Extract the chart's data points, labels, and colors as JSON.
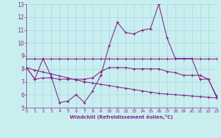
{
  "xlabel": "Windchill (Refroidissement éolien,°C)",
  "background_color": "#c8eef0",
  "grid_color": "#a8d8dc",
  "line_color": "#882288",
  "xmin": 0,
  "xmax": 23,
  "ymin": 5,
  "ymax": 13,
  "yticks": [
    5,
    6,
    7,
    8,
    9,
    10,
    11,
    12,
    13
  ],
  "xticks": [
    0,
    1,
    2,
    3,
    4,
    5,
    6,
    7,
    8,
    9,
    10,
    11,
    12,
    13,
    14,
    15,
    16,
    17,
    18,
    19,
    20,
    21,
    22,
    23
  ],
  "series1_x": [
    0,
    1,
    2,
    3,
    4,
    5,
    6,
    7,
    8,
    9,
    10,
    11,
    12,
    13,
    14,
    15,
    16,
    17,
    18,
    19,
    20,
    21,
    22,
    23
  ],
  "series1_y": [
    8.1,
    7.2,
    8.8,
    7.4,
    5.4,
    5.5,
    6.0,
    5.4,
    6.3,
    7.5,
    9.8,
    11.6,
    10.8,
    10.7,
    11.0,
    11.1,
    13.0,
    10.4,
    8.8,
    8.8,
    8.8,
    7.2,
    7.2,
    5.8
  ],
  "series2_x": [
    0,
    1,
    23
  ],
  "series2_y": [
    8.8,
    8.8,
    8.8
  ],
  "series2_full_x": [
    0,
    1,
    2,
    3,
    4,
    5,
    6,
    7,
    8,
    9,
    10,
    11,
    12,
    13,
    14,
    15,
    16,
    17,
    18,
    19,
    20,
    21,
    22,
    23
  ],
  "series2_full_y": [
    8.8,
    8.8,
    8.8,
    8.8,
    8.8,
    8.8,
    8.8,
    8.8,
    8.8,
    8.8,
    8.8,
    8.8,
    8.8,
    8.8,
    8.8,
    8.8,
    8.8,
    8.8,
    8.8,
    8.8,
    8.8,
    8.8,
    8.8,
    8.8
  ],
  "series3_x": [
    0,
    1,
    2,
    3,
    4,
    5,
    6,
    7,
    8,
    9,
    10,
    11,
    12,
    13,
    14,
    15,
    16,
    17,
    18,
    19,
    20,
    21,
    22,
    23
  ],
  "series3_y": [
    8.1,
    7.9,
    7.75,
    7.6,
    7.45,
    7.3,
    7.15,
    7.0,
    6.9,
    6.8,
    6.7,
    6.6,
    6.5,
    6.4,
    6.3,
    6.2,
    6.1,
    6.05,
    6.0,
    5.95,
    5.9,
    5.85,
    5.8,
    5.75
  ],
  "series4_x": [
    0,
    1,
    2,
    3,
    4,
    5,
    6,
    7,
    8,
    9,
    10,
    11,
    12,
    13,
    14,
    15,
    16,
    17,
    18,
    19,
    20,
    21,
    22,
    23
  ],
  "series4_y": [
    8.1,
    7.2,
    7.3,
    7.3,
    7.2,
    7.2,
    7.2,
    7.2,
    7.3,
    7.8,
    8.1,
    8.1,
    8.1,
    8.0,
    8.0,
    8.0,
    8.0,
    7.8,
    7.7,
    7.5,
    7.5,
    7.5,
    7.2,
    5.9
  ]
}
